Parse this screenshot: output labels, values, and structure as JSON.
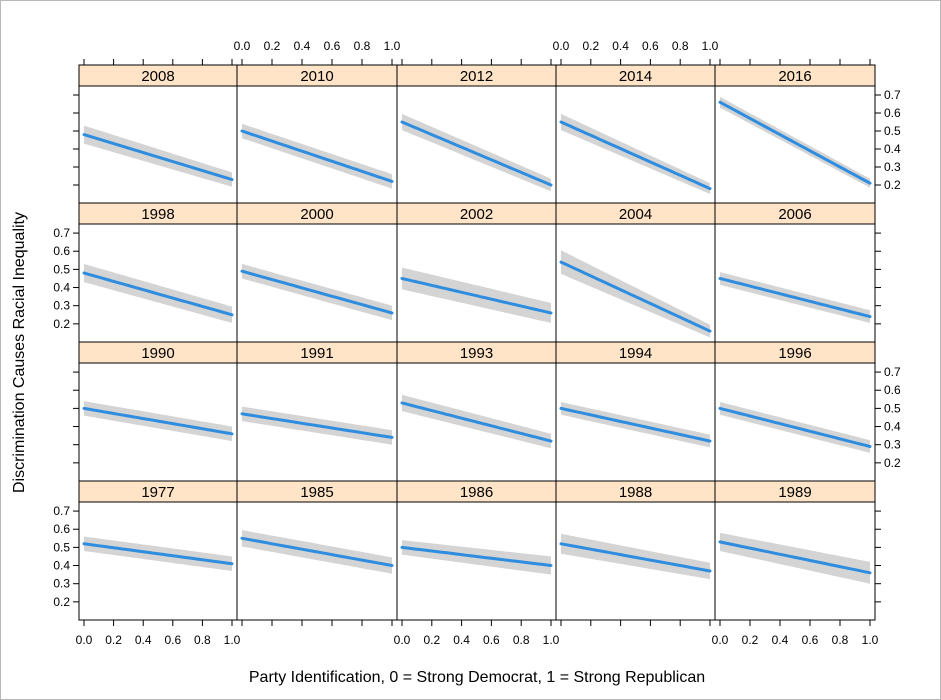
{
  "chart_data": {
    "type": "line",
    "xlabel": "Party Identification, 0 = Strong Democrat, 1 = Strong Republican",
    "ylabel": "Discrimination Causes Racial Inequality",
    "xlim": [
      0,
      1
    ],
    "ylim": [
      0.1,
      0.75
    ],
    "x_ticks": [
      0.0,
      0.2,
      0.4,
      0.6,
      0.8,
      1.0
    ],
    "x_tick_labels": [
      "0.0",
      "0.2",
      "0.4",
      "0.6",
      "0.8",
      "1.0"
    ],
    "y_ticks": [
      0.2,
      0.3,
      0.4,
      0.5,
      0.6,
      0.7
    ],
    "y_tick_labels": [
      "0.2",
      "0.3",
      "0.4",
      "0.5",
      "0.6",
      "0.7"
    ],
    "grid": false,
    "colors": {
      "line": "#2f8de0",
      "band": "#d4d4d4",
      "strip": "#ffe4c7"
    },
    "panels": [
      {
        "year": "2008",
        "row": 0,
        "col": 0,
        "start": 0.48,
        "end": 0.23,
        "band_start": 0.05,
        "band_end": 0.04
      },
      {
        "year": "2010",
        "row": 0,
        "col": 1,
        "start": 0.5,
        "end": 0.22,
        "band_start": 0.04,
        "band_end": 0.04
      },
      {
        "year": "2012",
        "row": 0,
        "col": 2,
        "start": 0.55,
        "end": 0.2,
        "band_start": 0.045,
        "band_end": 0.035
      },
      {
        "year": "2014",
        "row": 0,
        "col": 3,
        "start": 0.55,
        "end": 0.18,
        "band_start": 0.045,
        "band_end": 0.03
      },
      {
        "year": "2016",
        "row": 0,
        "col": 4,
        "start": 0.66,
        "end": 0.21,
        "band_start": 0.03,
        "band_end": 0.025
      },
      {
        "year": "1998",
        "row": 1,
        "col": 0,
        "start": 0.48,
        "end": 0.25,
        "band_start": 0.05,
        "band_end": 0.045
      },
      {
        "year": "2000",
        "row": 1,
        "col": 1,
        "start": 0.49,
        "end": 0.26,
        "band_start": 0.04,
        "band_end": 0.04
      },
      {
        "year": "2002",
        "row": 1,
        "col": 2,
        "start": 0.45,
        "end": 0.26,
        "band_start": 0.06,
        "band_end": 0.055
      },
      {
        "year": "2004",
        "row": 1,
        "col": 3,
        "start": 0.54,
        "end": 0.16,
        "band_start": 0.065,
        "band_end": 0.035
      },
      {
        "year": "2006",
        "row": 1,
        "col": 4,
        "start": 0.45,
        "end": 0.24,
        "band_start": 0.035,
        "band_end": 0.035
      },
      {
        "year": "1990",
        "row": 2,
        "col": 0,
        "start": 0.5,
        "end": 0.36,
        "band_start": 0.04,
        "band_end": 0.04
      },
      {
        "year": "1991",
        "row": 2,
        "col": 1,
        "start": 0.47,
        "end": 0.34,
        "band_start": 0.04,
        "band_end": 0.04
      },
      {
        "year": "1993",
        "row": 2,
        "col": 2,
        "start": 0.53,
        "end": 0.32,
        "band_start": 0.045,
        "band_end": 0.04
      },
      {
        "year": "1994",
        "row": 2,
        "col": 3,
        "start": 0.5,
        "end": 0.32,
        "band_start": 0.035,
        "band_end": 0.035
      },
      {
        "year": "1996",
        "row": 2,
        "col": 4,
        "start": 0.5,
        "end": 0.29,
        "band_start": 0.035,
        "band_end": 0.035
      },
      {
        "year": "1977",
        "row": 3,
        "col": 0,
        "start": 0.52,
        "end": 0.41,
        "band_start": 0.04,
        "band_end": 0.04
      },
      {
        "year": "1985",
        "row": 3,
        "col": 1,
        "start": 0.55,
        "end": 0.4,
        "band_start": 0.045,
        "band_end": 0.045
      },
      {
        "year": "1986",
        "row": 3,
        "col": 2,
        "start": 0.5,
        "end": 0.4,
        "band_start": 0.04,
        "band_end": 0.05
      },
      {
        "year": "1988",
        "row": 3,
        "col": 3,
        "start": 0.52,
        "end": 0.37,
        "band_start": 0.055,
        "band_end": 0.045
      },
      {
        "year": "1989",
        "row": 3,
        "col": 4,
        "start": 0.53,
        "end": 0.36,
        "band_start": 0.05,
        "band_end": 0.06
      }
    ]
  }
}
